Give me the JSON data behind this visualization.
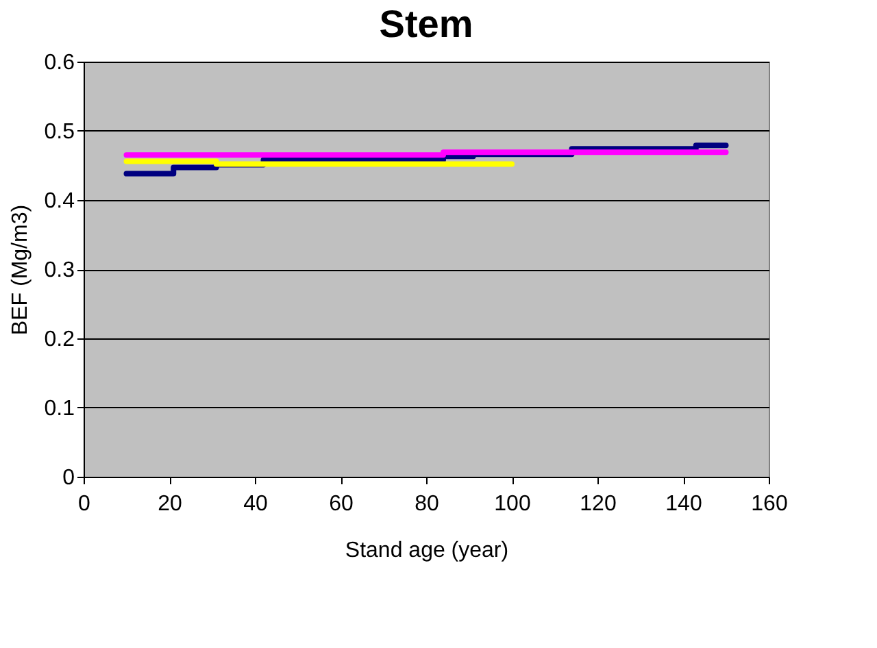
{
  "chart_data": {
    "type": "step",
    "title": "Stem",
    "xlabel": "Stand age (year)",
    "ylabel": "BEF (Mg/m3)",
    "series": [
      {
        "color": "#000080",
        "x": [
          10,
          21,
          31,
          42,
          84,
          91,
          114,
          143,
          150
        ],
        "values": [
          0.438,
          0.447,
          0.451,
          0.458,
          0.463,
          0.466,
          0.474,
          0.479,
          0.479
        ]
      },
      {
        "color": "#ff00ff",
        "x": [
          10,
          84,
          150
        ],
        "values": [
          0.465,
          0.469,
          0.469
        ]
      },
      {
        "color": "#ffff00",
        "x": [
          10,
          31,
          100
        ],
        "values": [
          0.456,
          0.452,
          0.452
        ]
      }
    ],
    "xlim": [
      0,
      160
    ],
    "xticks": [
      0,
      20,
      40,
      60,
      80,
      100,
      120,
      140,
      160
    ],
    "ylim": [
      0,
      0.6
    ],
    "yticks": [
      0,
      0.1,
      0.2,
      0.3,
      0.4,
      0.5,
      0.6
    ],
    "grid": "y",
    "legend": false,
    "marker": "none",
    "line_style": "solid"
  }
}
